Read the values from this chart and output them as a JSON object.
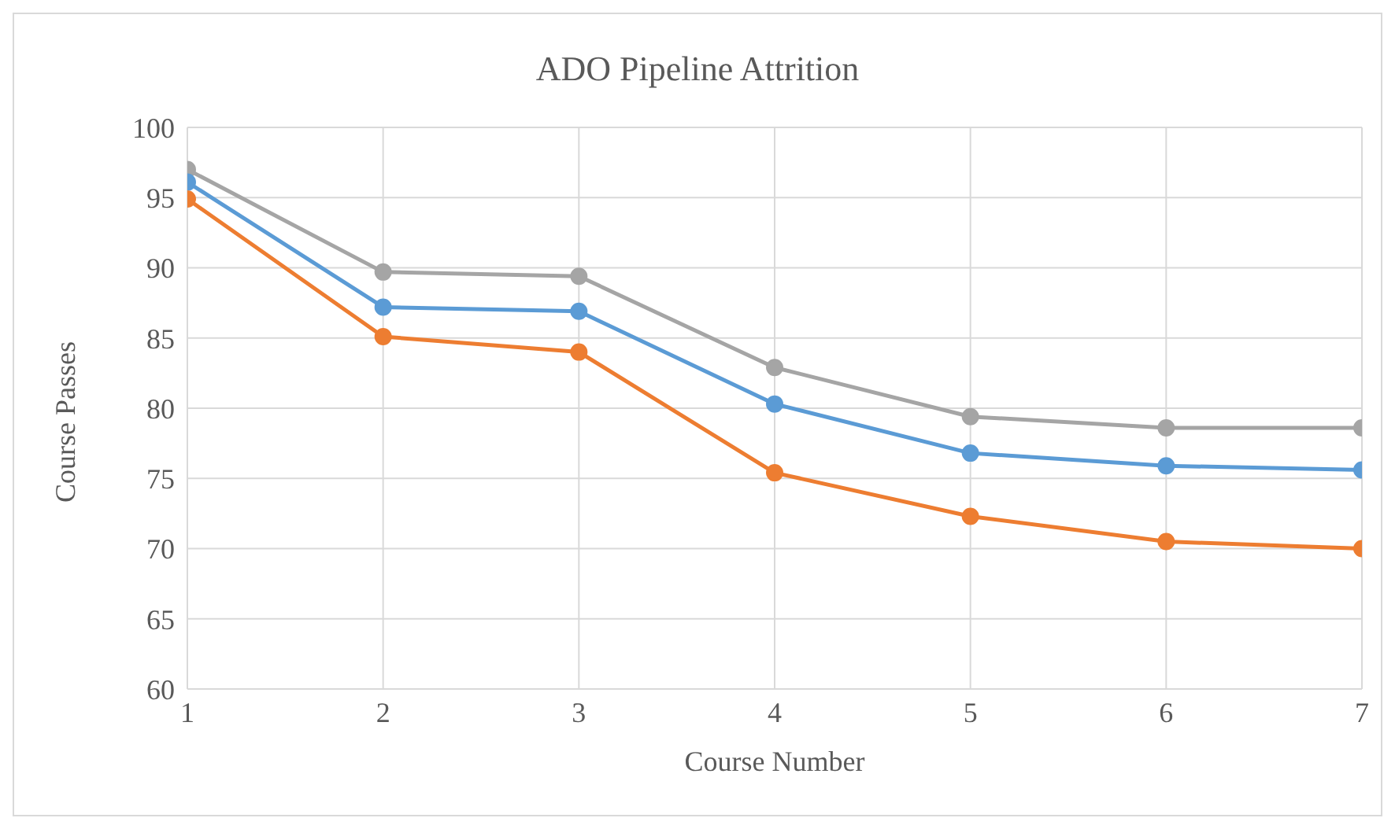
{
  "chart_data": {
    "type": "line",
    "title": "ADO Pipeline Attrition",
    "xlabel": "Course Number",
    "ylabel": "Course Passes",
    "x": [
      1,
      2,
      3,
      4,
      5,
      6,
      7
    ],
    "series": [
      {
        "color": "#a5a5a5",
        "values": [
          97,
          89.7,
          89.4,
          82.9,
          79.4,
          78.6,
          78.6
        ]
      },
      {
        "color": "#5b9bd5",
        "values": [
          96.1,
          87.2,
          86.9,
          80.3,
          76.8,
          75.9,
          75.6
        ]
      },
      {
        "color": "#ed7d31",
        "values": [
          94.9,
          85.1,
          84.0,
          75.4,
          72.3,
          70.5,
          70.0
        ]
      }
    ],
    "xlim": [
      1,
      7
    ],
    "xticks": [
      1,
      2,
      3,
      4,
      5,
      6,
      7
    ],
    "ylim": [
      60,
      100
    ],
    "yticks": [
      60,
      65,
      70,
      75,
      80,
      85,
      90,
      95,
      100
    ],
    "grid": true,
    "marker": "circle",
    "line_style": "solid",
    "legend": false
  }
}
